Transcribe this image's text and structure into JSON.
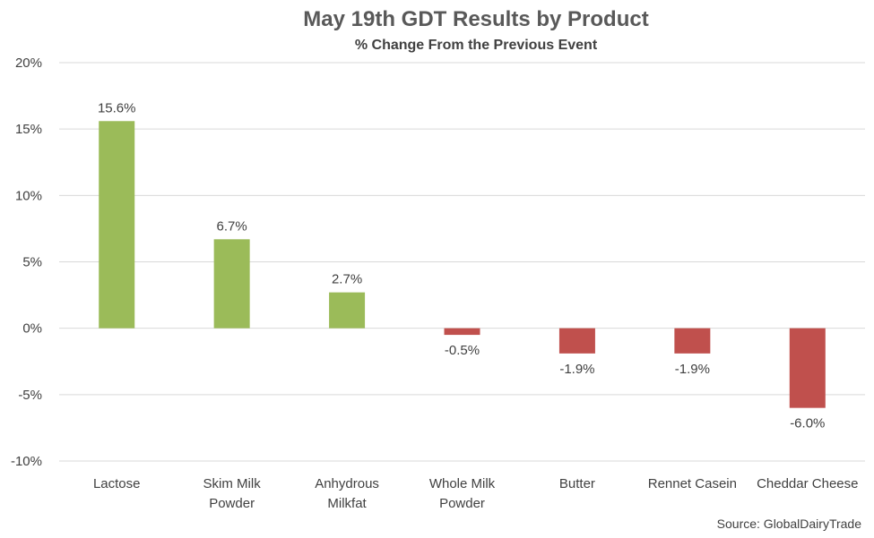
{
  "chart_data": {
    "type": "bar",
    "title": "May 19th GDT Results by Product",
    "subtitle": "% Change From the Previous Event",
    "categories": [
      [
        "Lactose"
      ],
      [
        "Skim Milk",
        "Powder"
      ],
      [
        "Anhydrous",
        "Milkfat"
      ],
      [
        "Whole Milk",
        "Powder"
      ],
      [
        "Butter"
      ],
      [
        "Rennet Casein"
      ],
      [
        "Cheddar Cheese"
      ]
    ],
    "values": [
      15.6,
      6.7,
      2.7,
      -0.5,
      -1.9,
      -1.9,
      -6.0
    ],
    "data_labels": [
      "15.6%",
      "6.7%",
      "2.7%",
      "-0.5%",
      "-1.9%",
      "-1.9%",
      "-6.0%"
    ],
    "ylim": [
      -10,
      20
    ],
    "yticks": [
      20,
      15,
      10,
      5,
      0,
      -5,
      -10
    ],
    "ytick_labels": [
      "20%",
      "15%",
      "10%",
      "5%",
      "0%",
      "-5%",
      "-10%"
    ],
    "grid": true,
    "colors": {
      "positive": "#9BBB59",
      "negative": "#C0504D",
      "grid": "#D9D9D9",
      "text": "#404040"
    },
    "source": "Source: GlobalDairyTrade"
  }
}
